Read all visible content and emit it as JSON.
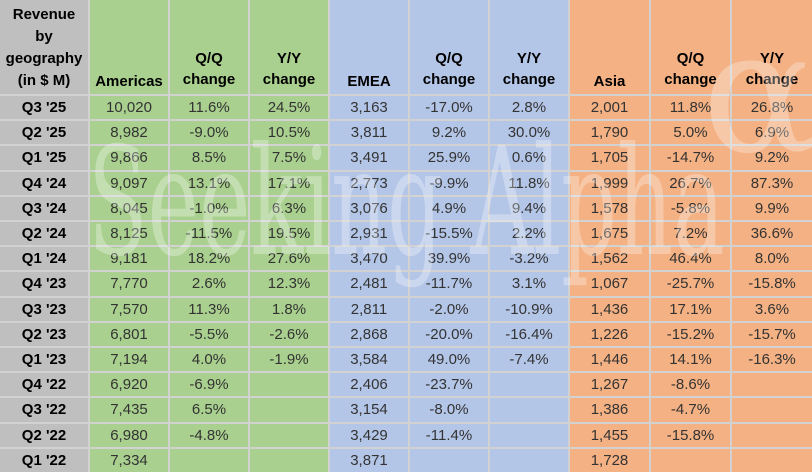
{
  "watermark": {
    "text": "Seeking Alpha",
    "symbol": "α"
  },
  "colors": {
    "label_bg": "#BFBFBF",
    "americas_bg": "#A9D08E",
    "emea_bg": "#B4C6E7",
    "asia_bg": "#F4B183",
    "gridline": "#D2D2D2"
  },
  "table": {
    "corner_label": "Revenue\nby\ngeography\n(in $ M)",
    "headers": {
      "americas": "Americas",
      "emea": "EMEA",
      "asia": "Asia",
      "qq": "Q/Q\nchange",
      "yy": "Y/Y\nchange"
    },
    "rows": [
      [
        "Q3 '25",
        "10,020",
        "11.6%",
        "24.5%",
        "3,163",
        "-17.0%",
        "2.8%",
        "2,001",
        "11.8%",
        "26.8%"
      ],
      [
        "Q2 '25",
        "8,982",
        "-9.0%",
        "10.5%",
        "3,811",
        "9.2%",
        "30.0%",
        "1,790",
        "5.0%",
        "6.9%"
      ],
      [
        "Q1 '25",
        "9,866",
        "8.5%",
        "7.5%",
        "3,491",
        "25.9%",
        "0.6%",
        "1,705",
        "-14.7%",
        "9.2%"
      ],
      [
        "Q4 '24",
        "9,097",
        "13.1%",
        "17.1%",
        "2,773",
        "-9.9%",
        "11.8%",
        "1,999",
        "26.7%",
        "87.3%"
      ],
      [
        "Q3 '24",
        "8,045",
        "-1.0%",
        "6.3%",
        "3,076",
        "4.9%",
        "9.4%",
        "1,578",
        "-5.8%",
        "9.9%"
      ],
      [
        "Q2 '24",
        "8,125",
        "-11.5%",
        "19.5%",
        "2,931",
        "-15.5%",
        "2.2%",
        "1,675",
        "7.2%",
        "36.6%"
      ],
      [
        "Q1 '24",
        "9,181",
        "18.2%",
        "27.6%",
        "3,470",
        "39.9%",
        "-3.2%",
        "1,562",
        "46.4%",
        "8.0%"
      ],
      [
        "Q4 '23",
        "7,770",
        "2.6%",
        "12.3%",
        "2,481",
        "-11.7%",
        "3.1%",
        "1,067",
        "-25.7%",
        "-15.8%"
      ],
      [
        "Q3 '23",
        "7,570",
        "11.3%",
        "1.8%",
        "2,811",
        "-2.0%",
        "-10.9%",
        "1,436",
        "17.1%",
        "3.6%"
      ],
      [
        "Q2 '23",
        "6,801",
        "-5.5%",
        "-2.6%",
        "2,868",
        "-20.0%",
        "-16.4%",
        "1,226",
        "-15.2%",
        "-15.7%"
      ],
      [
        "Q1 '23",
        "7,194",
        "4.0%",
        "-1.9%",
        "3,584",
        "49.0%",
        "-7.4%",
        "1,446",
        "14.1%",
        "-16.3%"
      ],
      [
        "Q4 '22",
        "6,920",
        "-6.9%",
        "",
        "2,406",
        "-23.7%",
        "",
        "1,267",
        "-8.6%",
        ""
      ],
      [
        "Q3 '22",
        "7,435",
        "6.5%",
        "",
        "3,154",
        "-8.0%",
        "",
        "1,386",
        "-4.7%",
        ""
      ],
      [
        "Q2 '22",
        "6,980",
        "-4.8%",
        "",
        "3,429",
        "-11.4%",
        "",
        "1,455",
        "-15.8%",
        ""
      ],
      [
        "Q1 '22",
        "7,334",
        "",
        "",
        "3,871",
        "",
        "",
        "1,728",
        "",
        ""
      ]
    ]
  },
  "chart_data": {
    "type": "table",
    "title": "Revenue by geography (in $ M)",
    "categories": [
      "Q3 '25",
      "Q2 '25",
      "Q1 '25",
      "Q4 '24",
      "Q3 '24",
      "Q2 '24",
      "Q1 '24",
      "Q4 '23",
      "Q3 '23",
      "Q2 '23",
      "Q1 '23",
      "Q4 '22",
      "Q3 '22",
      "Q2 '22",
      "Q1 '22"
    ],
    "series": [
      {
        "name": "Americas",
        "revenue": [
          10020,
          8982,
          9866,
          9097,
          8045,
          8125,
          9181,
          7770,
          7570,
          6801,
          7194,
          6920,
          7435,
          6980,
          7334
        ],
        "qq_change_pct": [
          11.6,
          -9.0,
          8.5,
          13.1,
          -1.0,
          -11.5,
          18.2,
          2.6,
          11.3,
          -5.5,
          4.0,
          -6.9,
          6.5,
          -4.8,
          null
        ],
        "yy_change_pct": [
          24.5,
          10.5,
          7.5,
          17.1,
          6.3,
          19.5,
          27.6,
          12.3,
          1.8,
          -2.6,
          -1.9,
          null,
          null,
          null,
          null
        ]
      },
      {
        "name": "EMEA",
        "revenue": [
          3163,
          3811,
          3491,
          2773,
          3076,
          2931,
          3470,
          2481,
          2811,
          2868,
          3584,
          2406,
          3154,
          3429,
          3871
        ],
        "qq_change_pct": [
          -17.0,
          9.2,
          25.9,
          -9.9,
          4.9,
          -15.5,
          39.9,
          -11.7,
          -2.0,
          -20.0,
          49.0,
          -23.7,
          -8.0,
          -11.4,
          null
        ],
        "yy_change_pct": [
          2.8,
          30.0,
          0.6,
          11.8,
          9.4,
          2.2,
          -3.2,
          3.1,
          -10.9,
          -16.4,
          -7.4,
          null,
          null,
          null,
          null
        ]
      },
      {
        "name": "Asia",
        "revenue": [
          2001,
          1790,
          1705,
          1999,
          1578,
          1675,
          1562,
          1067,
          1436,
          1226,
          1446,
          1267,
          1386,
          1455,
          1728
        ],
        "qq_change_pct": [
          11.8,
          5.0,
          -14.7,
          26.7,
          -5.8,
          7.2,
          46.4,
          -25.7,
          17.1,
          -15.2,
          14.1,
          -8.6,
          -4.7,
          -15.8,
          null
        ],
        "yy_change_pct": [
          26.8,
          6.9,
          9.2,
          87.3,
          9.9,
          36.6,
          8.0,
          -15.8,
          3.6,
          -15.7,
          -16.3,
          null,
          null,
          null,
          null
        ]
      }
    ]
  }
}
